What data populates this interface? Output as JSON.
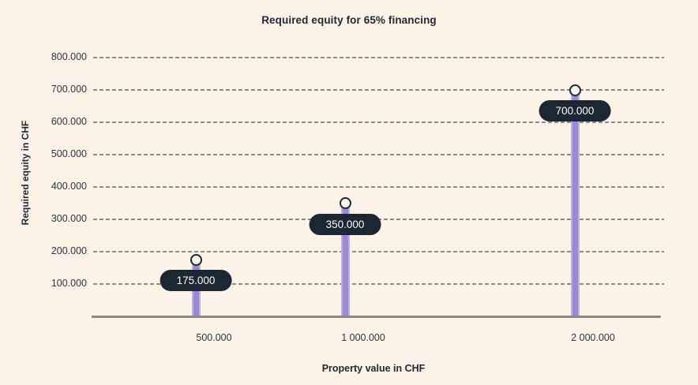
{
  "chart_data": {
    "type": "bar",
    "variant": "lollipop",
    "title": "Required equity for 65% financing",
    "xlabel": "Property value in CHF",
    "ylabel": "Required equity in CHF",
    "categories": [
      "500.000",
      "1 000.000",
      "2 000.000"
    ],
    "values": [
      175000,
      350000,
      700000
    ],
    "point_labels": [
      "175.000",
      "350.000",
      "700.000"
    ],
    "y_tick_values": [
      100000,
      200000,
      300000,
      400000,
      500000,
      600000,
      700000,
      800000
    ],
    "y_tick_labels": [
      "100.000",
      "200.000",
      "300.000",
      "400.000",
      "500.000",
      "600.000",
      "700.000",
      "800.000"
    ],
    "ylim": [
      0,
      800000
    ],
    "grid": "horizontal-dashed",
    "legend": "none",
    "colors": {
      "background": "#fdf3e7",
      "bar": "#9a8ad5",
      "pill": "#1b2733",
      "pill_text": "#fdfbf7",
      "grid": "#8c8c86",
      "axis": "#8a8a84",
      "text": "#1c2834",
      "marker_fill": "#fdf8ef",
      "marker_stroke": "#1c2834"
    }
  }
}
